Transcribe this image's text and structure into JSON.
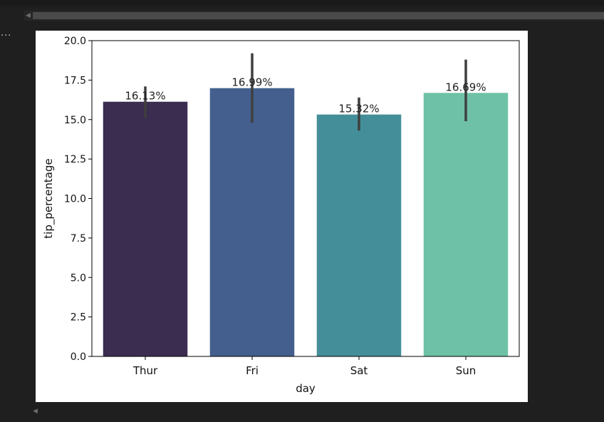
{
  "ui": {
    "ellipsis": "..."
  },
  "chart_data": {
    "type": "bar",
    "categories": [
      "Thur",
      "Fri",
      "Sat",
      "Sun"
    ],
    "values": [
      16.13,
      16.99,
      15.32,
      16.69
    ],
    "ci": [
      [
        15.1,
        17.1
      ],
      [
        14.8,
        19.2
      ],
      [
        14.3,
        16.4
      ],
      [
        14.9,
        18.8
      ]
    ],
    "data_labels": [
      "16.13%",
      "16.99%",
      "15.32%",
      "16.69%"
    ],
    "colors": [
      "#3a2d50",
      "#445f8e",
      "#438e98",
      "#6ec1a6"
    ],
    "xlabel": "day",
    "ylabel": "tip_percentage",
    "ylim": [
      0,
      20.0
    ],
    "yticks": [
      0.0,
      2.5,
      5.0,
      7.5,
      10.0,
      12.5,
      15.0,
      17.5,
      20.0
    ],
    "ytick_labels": [
      "0.0",
      "2.5",
      "5.0",
      "7.5",
      "10.0",
      "12.5",
      "15.0",
      "17.5",
      "20.0"
    ],
    "grid": false,
    "errorbar_color": "#3f3f3f"
  }
}
